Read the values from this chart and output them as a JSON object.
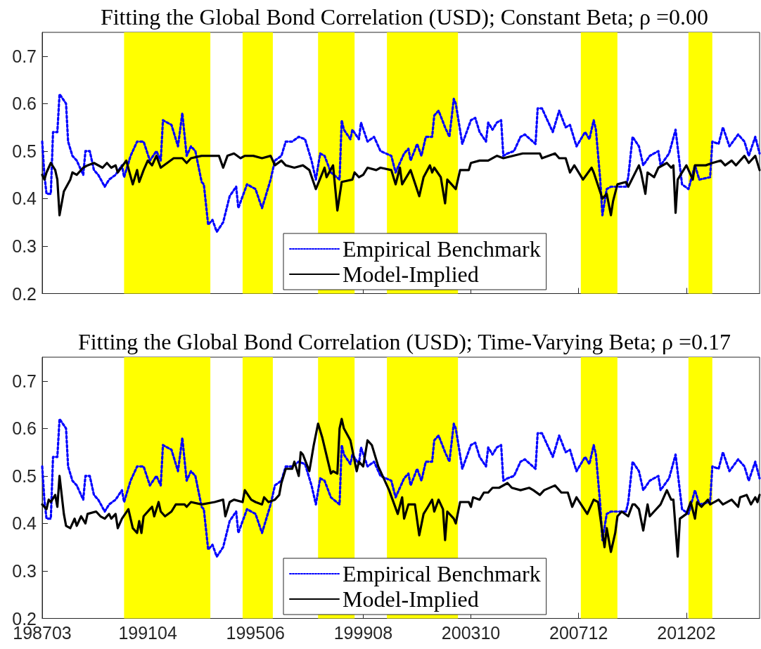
{
  "chart_data": [
    {
      "type": "line",
      "title": "Fitting the Global Bond Correlation (USD); Constant Beta; ρ =0.00",
      "xlim": [
        "1987-03",
        "2014-12"
      ],
      "xticks": [
        {
          "value": "1987-03",
          "label": null
        },
        {
          "value": "1991-04",
          "label": null
        },
        {
          "value": "1995-06",
          "label": null
        },
        {
          "value": "1999-08",
          "label": null
        },
        {
          "value": "2003-10",
          "label": null
        },
        {
          "value": "2007-12",
          "label": null
        },
        {
          "value": "2012-02",
          "label": null
        }
      ],
      "ylim": [
        0.2,
        0.75
      ],
      "yticks": [
        0.2,
        0.3,
        0.4,
        0.5,
        0.6,
        0.7
      ],
      "tick_labels": "y",
      "legend": "bottom",
      "marker": "none",
      "bands": [
        {
          "axis": "x",
          "from": "1990-05",
          "to": "1993-09",
          "color": "#ffff00"
        },
        {
          "axis": "x",
          "from": "1994-12",
          "to": "1996-02",
          "color": "#ffff00"
        },
        {
          "axis": "x",
          "from": "1997-11",
          "to": "1999-04",
          "color": "#ffff00"
        },
        {
          "axis": "x",
          "from": "2000-07",
          "to": "2003-04",
          "color": "#ffff00"
        },
        {
          "axis": "x",
          "from": "2008-01",
          "to": "2009-06",
          "color": "#ffff00"
        },
        {
          "axis": "x",
          "from": "2012-03",
          "to": "2013-02",
          "color": "#ffff00"
        }
      ],
      "series": [
        {
          "name": "Empirical Benchmark",
          "color": "#0000ff",
          "line_style": "dotted",
          "x": [
            "1987-03",
            "1987-04",
            "1987-05",
            "1987-07",
            "1987-08",
            "1987-10",
            "1987-11",
            "1988-02",
            "1988-03",
            "1988-05",
            "1988-07",
            "1988-10",
            "1988-11",
            "1989-01",
            "1989-03",
            "1989-05",
            "1989-08",
            "1989-10",
            "1990-01",
            "1990-04",
            "1990-05",
            "1990-08",
            "1990-11",
            "1991-02",
            "1991-05",
            "1991-08",
            "1991-10",
            "1991-11",
            "1992-01",
            "1992-03",
            "1992-06",
            "1992-08",
            "1992-10",
            "1992-12",
            "1993-02",
            "1993-05",
            "1993-06",
            "1993-08",
            "1993-10",
            "1993-12",
            "1994-03",
            "1994-06",
            "1994-09",
            "1994-10",
            "1995-02",
            "1995-06",
            "1995-09",
            "1996-01",
            "1996-03",
            "1996-06",
            "1996-08",
            "1996-11",
            "1997-02",
            "1997-05",
            "1997-08",
            "1997-10",
            "1997-12",
            "1998-02",
            "1998-05",
            "1998-09",
            "1998-10",
            "1998-11",
            "1999-02",
            "1999-03",
            "1999-06",
            "1999-07",
            "1999-10",
            "2000-01",
            "2000-04",
            "2000-09",
            "2000-11",
            "2001-03",
            "2001-05",
            "2001-06",
            "2001-09",
            "2001-11",
            "2002-01",
            "2002-04",
            "2002-05",
            "2002-07",
            "2002-10",
            "2002-12",
            "2003-02",
            "2003-03",
            "2003-06",
            "2003-10",
            "2003-12",
            "2004-02",
            "2004-05",
            "2004-06",
            "2004-08",
            "2004-10",
            "2004-12",
            "2005-01",
            "2005-03",
            "2005-06",
            "2005-09",
            "2005-11",
            "2006-04",
            "2006-05",
            "2006-07",
            "2006-12",
            "2007-03",
            "2007-06",
            "2007-08",
            "2007-11",
            "2008-03",
            "2008-05",
            "2008-07",
            "2008-08",
            "2008-10",
            "2008-11",
            "2009-01",
            "2009-03",
            "2009-10",
            "2009-11",
            "2010-01",
            "2010-04",
            "2010-06",
            "2010-09",
            "2011-01",
            "2011-02",
            "2011-06",
            "2011-09",
            "2011-12",
            "2012-03",
            "2012-06",
            "2012-08",
            "2013-01",
            "2013-02",
            "2013-05",
            "2013-07",
            "2013-10",
            "2014-02",
            "2014-05",
            "2014-07",
            "2014-10",
            "2014-12"
          ],
          "values": [
            0.52,
            0.45,
            0.41,
            0.41,
            0.54,
            0.54,
            0.62,
            0.6,
            0.52,
            0.49,
            0.48,
            0.45,
            0.5,
            0.5,
            0.46,
            0.45,
            0.425,
            0.44,
            0.45,
            0.47,
            0.445,
            0.49,
            0.52,
            0.52,
            0.48,
            0.5,
            0.48,
            0.565,
            0.56,
            0.555,
            0.51,
            0.58,
            0.49,
            0.51,
            0.5,
            0.435,
            0.43,
            0.345,
            0.355,
            0.33,
            0.35,
            0.405,
            0.425,
            0.38,
            0.43,
            0.42,
            0.38,
            0.44,
            0.48,
            0.49,
            0.52,
            0.52,
            0.53,
            0.525,
            0.48,
            0.44,
            0.495,
            0.49,
            0.455,
            0.44,
            0.565,
            0.545,
            0.525,
            0.545,
            0.525,
            0.56,
            0.52,
            0.53,
            0.5,
            0.49,
            0.455,
            0.495,
            0.505,
            0.48,
            0.515,
            0.49,
            0.53,
            0.53,
            0.575,
            0.585,
            0.55,
            0.53,
            0.61,
            0.6,
            0.515,
            0.565,
            0.57,
            0.54,
            0.52,
            0.56,
            0.545,
            0.56,
            0.565,
            0.49,
            0.495,
            0.5,
            0.53,
            0.535,
            0.515,
            0.59,
            0.59,
            0.54,
            0.585,
            0.55,
            0.555,
            0.51,
            0.54,
            0.525,
            0.565,
            0.545,
            0.44,
            0.365,
            0.42,
            0.425,
            0.425,
            0.445,
            0.53,
            0.51,
            0.47,
            0.49,
            0.5,
            0.47,
            0.495,
            0.545,
            0.43,
            0.42,
            0.47,
            0.44,
            0.445,
            0.52,
            0.515,
            0.55,
            0.51,
            0.535,
            0.52,
            0.49,
            0.53,
            0.495
          ]
        },
        {
          "name": "Model-Implied",
          "color": "#000000",
          "line_style": "solid",
          "x": [
            "1987-03",
            "1987-04",
            "1987-05",
            "1987-07",
            "1987-09",
            "1987-10",
            "1987-11",
            "1988-01",
            "1988-04",
            "1988-05",
            "1988-07",
            "1988-10",
            "1988-12",
            "1989-03",
            "1989-07",
            "1989-09",
            "1989-11",
            "1990-01",
            "1990-02",
            "1990-06",
            "1990-09",
            "1990-11",
            "1990-12",
            "1991-02",
            "1991-04",
            "1991-06",
            "1991-08",
            "1991-10",
            "1992-04",
            "1992-08",
            "1992-10",
            "1992-12",
            "1993-05",
            "1993-08",
            "1994-01",
            "1994-03",
            "1994-05",
            "1994-08",
            "1994-11",
            "1995-01",
            "1995-05",
            "1995-09",
            "1996-01",
            "1996-03",
            "1996-06",
            "1996-08",
            "1996-12",
            "1997-04",
            "1997-07",
            "1997-10",
            "1998-02",
            "1998-03",
            "1998-06",
            "1998-08",
            "1998-10",
            "1999-03",
            "1999-04",
            "1999-06",
            "1999-08",
            "1999-10",
            "2000-02",
            "2000-04",
            "2000-09",
            "2000-11",
            "2001-01",
            "2001-02",
            "2001-06",
            "2001-10",
            "2001-12",
            "2002-03",
            "2002-04",
            "2002-05",
            "2002-08",
            "2002-10",
            "2002-11",
            "2003-03",
            "2003-05",
            "2003-09",
            "2003-10",
            "2004-02",
            "2004-06",
            "2004-10",
            "2005-01",
            "2005-10",
            "2006-06",
            "2006-07",
            "2007-01",
            "2007-03",
            "2007-06",
            "2007-08",
            "2007-10",
            "2008-02",
            "2008-06",
            "2008-07",
            "2008-11",
            "2009-01",
            "2009-03",
            "2009-04",
            "2009-06",
            "2009-10",
            "2009-11",
            "2010-04",
            "2010-05",
            "2010-07",
            "2010-08",
            "2010-11",
            "2011-01",
            "2011-05",
            "2011-07",
            "2011-08",
            "2011-09",
            "2011-10",
            "2012-02",
            "2012-05",
            "2012-06",
            "2012-11",
            "2013-02",
            "2013-06",
            "2013-08",
            "2013-11",
            "2014-01",
            "2014-05",
            "2014-07",
            "2014-10",
            "2014-12"
          ],
          "values": [
            0.45,
            0.44,
            0.455,
            0.475,
            0.46,
            0.44,
            0.365,
            0.415,
            0.44,
            0.455,
            0.45,
            0.465,
            0.47,
            0.475,
            0.465,
            0.475,
            0.465,
            0.47,
            0.455,
            0.48,
            0.43,
            0.46,
            0.435,
            0.46,
            0.48,
            0.47,
            0.49,
            0.465,
            0.485,
            0.485,
            0.475,
            0.485,
            0.49,
            0.49,
            0.49,
            0.465,
            0.49,
            0.495,
            0.485,
            0.49,
            0.49,
            0.485,
            0.49,
            0.47,
            0.48,
            0.47,
            0.465,
            0.47,
            0.46,
            0.42,
            0.465,
            0.445,
            0.47,
            0.375,
            0.435,
            0.44,
            0.455,
            0.445,
            0.45,
            0.465,
            0.46,
            0.465,
            0.46,
            0.43,
            0.465,
            0.43,
            0.46,
            0.405,
            0.445,
            0.47,
            0.455,
            0.465,
            0.445,
            0.39,
            0.44,
            0.42,
            0.46,
            0.46,
            0.475,
            0.48,
            0.48,
            0.49,
            0.485,
            0.495,
            0.495,
            0.485,
            0.495,
            0.485,
            0.485,
            0.455,
            0.47,
            0.44,
            0.465,
            0.455,
            0.4,
            0.41,
            0.365,
            0.395,
            0.43,
            0.435,
            0.425,
            0.47,
            0.455,
            0.41,
            0.455,
            0.445,
            0.465,
            0.475,
            0.465,
            0.47,
            0.37,
            0.44,
            0.47,
            0.44,
            0.47,
            0.47,
            0.475,
            0.48,
            0.47,
            0.48,
            0.47,
            0.49,
            0.475,
            0.49,
            0.46
          ]
        }
      ]
    },
    {
      "type": "line",
      "title": "Fitting the Global Bond Correlation (USD); Time-Varying Beta; ρ =0.17",
      "xlim": [
        "1987-03",
        "2014-12"
      ],
      "xticks": [
        {
          "value": "1987-03",
          "label": "198703"
        },
        {
          "value": "1991-04",
          "label": "199104"
        },
        {
          "value": "1995-06",
          "label": "199506"
        },
        {
          "value": "1999-08",
          "label": "199908"
        },
        {
          "value": "2003-10",
          "label": "200310"
        },
        {
          "value": "2007-12",
          "label": "200712"
        },
        {
          "value": "2012-02",
          "label": "201202"
        }
      ],
      "ylim": [
        0.2,
        0.75
      ],
      "yticks": [
        0.2,
        0.3,
        0.4,
        0.5,
        0.6,
        0.7
      ],
      "legend": "bottom",
      "marker": "none",
      "bands": [
        {
          "axis": "x",
          "from": "1990-05",
          "to": "1993-09",
          "color": "#ffff00"
        },
        {
          "axis": "x",
          "from": "1994-12",
          "to": "1996-02",
          "color": "#ffff00"
        },
        {
          "axis": "x",
          "from": "1997-11",
          "to": "1999-04",
          "color": "#ffff00"
        },
        {
          "axis": "x",
          "from": "2000-07",
          "to": "2003-04",
          "color": "#ffff00"
        },
        {
          "axis": "x",
          "from": "2008-01",
          "to": "2009-06",
          "color": "#ffff00"
        },
        {
          "axis": "x",
          "from": "2012-03",
          "to": "2013-02",
          "color": "#ffff00"
        }
      ],
      "series": [
        {
          "name": "Empirical Benchmark",
          "color": "#0000ff",
          "line_style": "dotted",
          "x": [
            "1987-03",
            "1987-04",
            "1987-05",
            "1987-07",
            "1987-08",
            "1987-10",
            "1987-11",
            "1988-02",
            "1988-03",
            "1988-05",
            "1988-07",
            "1988-10",
            "1988-11",
            "1989-01",
            "1989-03",
            "1989-05",
            "1989-08",
            "1989-10",
            "1990-01",
            "1990-04",
            "1990-05",
            "1990-08",
            "1990-11",
            "1991-02",
            "1991-05",
            "1991-08",
            "1991-10",
            "1991-11",
            "1992-01",
            "1992-03",
            "1992-06",
            "1992-08",
            "1992-10",
            "1992-12",
            "1993-02",
            "1993-05",
            "1993-06",
            "1993-08",
            "1993-10",
            "1993-12",
            "1994-03",
            "1994-06",
            "1994-09",
            "1994-10",
            "1995-02",
            "1995-06",
            "1995-09",
            "1996-01",
            "1996-03",
            "1996-06",
            "1996-08",
            "1996-11",
            "1997-02",
            "1997-05",
            "1997-08",
            "1997-10",
            "1997-12",
            "1998-02",
            "1998-05",
            "1998-09",
            "1998-10",
            "1998-11",
            "1999-02",
            "1999-03",
            "1999-06",
            "1999-07",
            "1999-10",
            "2000-01",
            "2000-04",
            "2000-09",
            "2000-11",
            "2001-03",
            "2001-05",
            "2001-06",
            "2001-09",
            "2001-11",
            "2002-01",
            "2002-04",
            "2002-05",
            "2002-07",
            "2002-10",
            "2002-12",
            "2003-02",
            "2003-03",
            "2003-06",
            "2003-10",
            "2003-12",
            "2004-02",
            "2004-05",
            "2004-06",
            "2004-08",
            "2004-10",
            "2004-12",
            "2005-01",
            "2005-03",
            "2005-06",
            "2005-09",
            "2005-11",
            "2006-04",
            "2006-05",
            "2006-07",
            "2006-12",
            "2007-03",
            "2007-06",
            "2007-08",
            "2007-11",
            "2008-03",
            "2008-05",
            "2008-07",
            "2008-08",
            "2008-10",
            "2008-11",
            "2009-01",
            "2009-03",
            "2009-10",
            "2009-11",
            "2010-01",
            "2010-04",
            "2010-06",
            "2010-09",
            "2011-01",
            "2011-02",
            "2011-06",
            "2011-09",
            "2011-12",
            "2012-03",
            "2012-06",
            "2012-08",
            "2013-01",
            "2013-02",
            "2013-05",
            "2013-07",
            "2013-10",
            "2014-02",
            "2014-05",
            "2014-07",
            "2014-10",
            "2014-12"
          ],
          "values": [
            0.52,
            0.45,
            0.41,
            0.41,
            0.54,
            0.54,
            0.62,
            0.6,
            0.52,
            0.49,
            0.48,
            0.45,
            0.5,
            0.5,
            0.46,
            0.45,
            0.425,
            0.44,
            0.45,
            0.47,
            0.445,
            0.49,
            0.52,
            0.52,
            0.48,
            0.5,
            0.48,
            0.565,
            0.56,
            0.555,
            0.51,
            0.58,
            0.49,
            0.51,
            0.5,
            0.435,
            0.43,
            0.345,
            0.355,
            0.33,
            0.35,
            0.405,
            0.425,
            0.38,
            0.43,
            0.42,
            0.38,
            0.44,
            0.48,
            0.49,
            0.52,
            0.52,
            0.53,
            0.525,
            0.48,
            0.44,
            0.495,
            0.49,
            0.455,
            0.44,
            0.565,
            0.545,
            0.525,
            0.545,
            0.525,
            0.56,
            0.52,
            0.53,
            0.5,
            0.49,
            0.455,
            0.495,
            0.505,
            0.48,
            0.515,
            0.49,
            0.53,
            0.53,
            0.575,
            0.585,
            0.55,
            0.53,
            0.61,
            0.6,
            0.515,
            0.565,
            0.57,
            0.54,
            0.52,
            0.56,
            0.545,
            0.56,
            0.565,
            0.49,
            0.495,
            0.5,
            0.53,
            0.535,
            0.515,
            0.59,
            0.59,
            0.54,
            0.585,
            0.55,
            0.555,
            0.51,
            0.54,
            0.525,
            0.565,
            0.545,
            0.44,
            0.365,
            0.42,
            0.425,
            0.425,
            0.445,
            0.53,
            0.51,
            0.47,
            0.49,
            0.5,
            0.47,
            0.495,
            0.545,
            0.43,
            0.42,
            0.47,
            0.44,
            0.445,
            0.52,
            0.515,
            0.55,
            0.51,
            0.535,
            0.52,
            0.49,
            0.53,
            0.495
          ]
        },
        {
          "name": "Model-Implied",
          "color": "#000000",
          "line_style": "solid",
          "x": [
            "1987-03",
            "1987-05",
            "1987-06",
            "1987-07",
            "1987-09",
            "1987-10",
            "1987-11",
            "1988-01",
            "1988-02",
            "1988-04",
            "1988-06",
            "1988-07",
            "1988-09",
            "1988-11",
            "1988-12",
            "1989-04",
            "1989-06",
            "1989-08",
            "1989-10",
            "1989-11",
            "1990-01",
            "1990-02",
            "1990-04",
            "1990-07",
            "1990-09",
            "1990-11",
            "1990-12",
            "1991-01",
            "1991-02",
            "1991-05",
            "1991-06",
            "1991-07",
            "1991-09",
            "1991-10",
            "1991-12",
            "1992-03",
            "1992-05",
            "1992-09",
            "1992-10",
            "1992-12",
            "1993-05",
            "1993-11",
            "1994-03",
            "1994-04",
            "1994-06",
            "1994-08",
            "1994-12",
            "1995-01",
            "1995-04",
            "1995-06",
            "1995-09",
            "1995-10",
            "1995-12",
            "1996-03",
            "1996-05",
            "1996-06",
            "1996-08",
            "1996-11",
            "1996-12",
            "1997-02",
            "1997-03",
            "1997-04",
            "1997-07",
            "1997-09",
            "1997-11",
            "1998-01",
            "1998-05",
            "1998-06",
            "1998-08",
            "1998-09",
            "1998-10",
            "1998-11",
            "1999-02",
            "1999-05",
            "1999-06",
            "1999-08",
            "1999-10",
            "1999-12",
            "2000-03",
            "2000-08",
            "2000-12",
            "2001-02",
            "2001-03",
            "2001-05",
            "2001-08",
            "2001-10",
            "2001-12",
            "2002-02",
            "2002-04",
            "2002-05",
            "2002-07",
            "2002-09",
            "2002-10",
            "2002-11",
            "2003-02",
            "2003-03",
            "2003-05",
            "2003-09",
            "2003-10",
            "2003-11",
            "2004-02",
            "2004-04",
            "2004-06",
            "2004-08",
            "2004-11",
            "2005-03",
            "2005-05",
            "2005-09",
            "2006-01",
            "2006-03",
            "2006-06",
            "2006-08",
            "2007-01",
            "2007-04",
            "2007-07",
            "2007-09",
            "2007-11",
            "2008-04",
            "2008-07",
            "2008-09",
            "2008-12",
            "2009-01",
            "2009-03",
            "2009-05",
            "2009-06",
            "2009-08",
            "2009-11",
            "2010-01",
            "2010-02",
            "2010-04",
            "2010-06",
            "2010-08",
            "2010-09",
            "2010-11",
            "2011-02",
            "2011-05",
            "2011-07",
            "2011-08",
            "2011-10",
            "2011-11",
            "2012-02",
            "2012-04",
            "2012-06",
            "2012-07",
            "2012-09",
            "2012-12",
            "2013-01",
            "2013-05",
            "2013-07",
            "2013-11",
            "2014-02",
            "2014-03",
            "2014-06",
            "2014-08",
            "2014-10",
            "2014-11",
            "2014-12"
          ],
          "values": [
            0.44,
            0.43,
            0.45,
            0.445,
            0.46,
            0.435,
            0.5,
            0.42,
            0.395,
            0.39,
            0.41,
            0.395,
            0.415,
            0.4,
            0.42,
            0.425,
            0.415,
            0.41,
            0.42,
            0.41,
            0.42,
            0.39,
            0.41,
            0.43,
            0.39,
            0.38,
            0.405,
            0.38,
            0.415,
            0.43,
            0.435,
            0.415,
            0.445,
            0.425,
            0.415,
            0.425,
            0.44,
            0.44,
            0.435,
            0.445,
            0.44,
            0.445,
            0.45,
            0.415,
            0.445,
            0.45,
            0.445,
            0.47,
            0.45,
            0.445,
            0.44,
            0.455,
            0.445,
            0.45,
            0.46,
            0.485,
            0.515,
            0.515,
            0.53,
            0.5,
            0.55,
            0.545,
            0.51,
            0.565,
            0.61,
            0.58,
            0.505,
            0.51,
            0.505,
            0.6,
            0.62,
            0.6,
            0.575,
            0.51,
            0.53,
            0.52,
            0.575,
            0.565,
            0.52,
            0.47,
            0.42,
            0.455,
            0.41,
            0.44,
            0.44,
            0.375,
            0.42,
            0.435,
            0.45,
            0.425,
            0.45,
            0.43,
            0.365,
            0.425,
            0.41,
            0.4,
            0.445,
            0.445,
            0.435,
            0.455,
            0.45,
            0.465,
            0.465,
            0.475,
            0.475,
            0.485,
            0.475,
            0.47,
            0.475,
            0.47,
            0.46,
            0.47,
            0.48,
            0.465,
            0.465,
            0.435,
            0.455,
            0.42,
            0.45,
            0.445,
            0.35,
            0.39,
            0.34,
            0.38,
            0.415,
            0.425,
            0.415,
            0.44,
            0.44,
            0.43,
            0.385,
            0.44,
            0.415,
            0.425,
            0.44,
            0.47,
            0.45,
            0.45,
            0.33,
            0.41,
            0.42,
            0.445,
            0.41,
            0.445,
            0.435,
            0.45,
            0.44,
            0.45,
            0.44,
            0.45,
            0.435,
            0.455,
            0.46,
            0.44,
            0.455,
            0.445,
            0.46
          ]
        }
      ]
    }
  ]
}
